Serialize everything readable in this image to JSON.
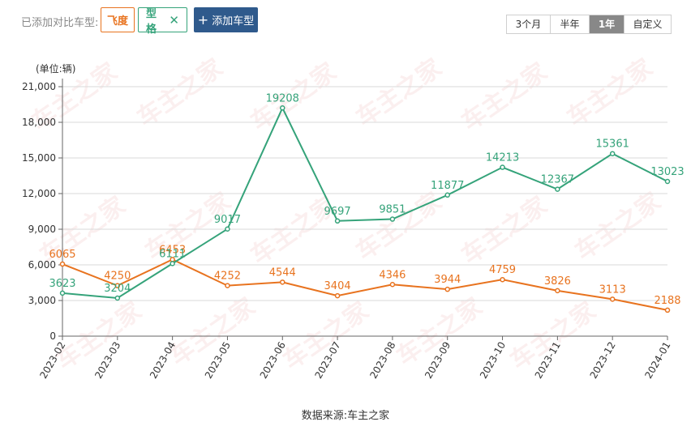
{
  "toolbar": {
    "compare_label": "已添加对比车型:",
    "models": [
      {
        "label": "飞度",
        "color": "#e8731f",
        "removable": false
      },
      {
        "label": "型格",
        "color": "#35a37a",
        "removable": true
      }
    ],
    "remove_glyph": "✕",
    "add_button": {
      "icon": "plus-icon",
      "plus": "+",
      "label": "添加车型"
    },
    "ranges": [
      {
        "label": "3个月",
        "active": false
      },
      {
        "label": "半年",
        "active": false
      },
      {
        "label": "1年",
        "active": true
      },
      {
        "label": "自定义",
        "active": false
      }
    ]
  },
  "unit_label": "(单位:辆)",
  "watermark": "车主之家",
  "source": "数据来源:车主之家",
  "chart_data": {
    "type": "line",
    "title": "",
    "xlabel": "",
    "ylabel": "",
    "categories": [
      "2023-02",
      "2023-03",
      "2023-04",
      "2023-05",
      "2023-06",
      "2023-07",
      "2023-08",
      "2023-09",
      "2023-10",
      "2023-11",
      "2023-12",
      "2024-01"
    ],
    "y_ticks": [
      "0",
      "3,000",
      "6,000",
      "9,000",
      "12,000",
      "15,000",
      "18,000",
      "21,000"
    ],
    "ylim": [
      0,
      21000
    ],
    "grid": true,
    "series": [
      {
        "name": "飞度",
        "color": "#e8731f",
        "values": [
          6065,
          4250,
          6453,
          4252,
          4544,
          3404,
          4346,
          3944,
          4759,
          3826,
          3113,
          2188
        ]
      },
      {
        "name": "型格",
        "color": "#35a37a",
        "values": [
          3623,
          3204,
          6111,
          9017,
          19208,
          9697,
          9851,
          11877,
          14213,
          12367,
          15361,
          13023
        ]
      }
    ]
  }
}
